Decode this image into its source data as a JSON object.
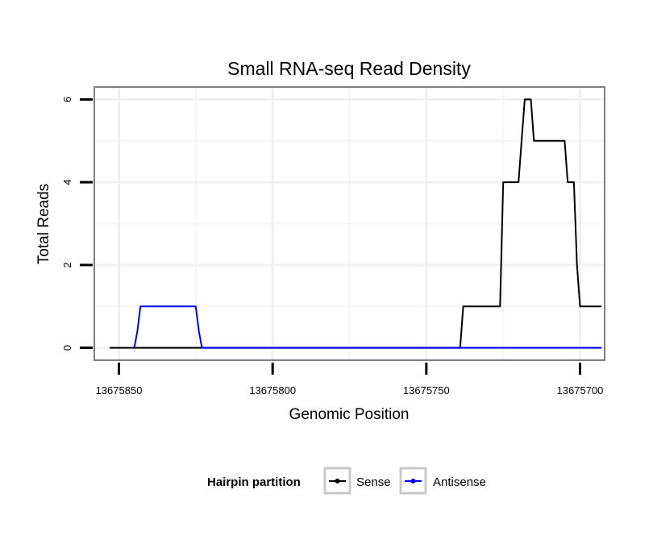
{
  "chart_data": {
    "type": "line",
    "title": "Small RNA-seq Read Density",
    "xlabel": "Genomic Position",
    "ylabel": "Total Reads",
    "x_reversed": true,
    "xlim": [
      13675858,
      13675692
    ],
    "ylim": [
      -0.3,
      6.3
    ],
    "x_ticks": [
      13675850,
      13675800,
      13675750,
      13675700
    ],
    "x_tick_labels": [
      "13675850",
      "13675800",
      "13675750",
      "13675700"
    ],
    "y_ticks": [
      0,
      2,
      4,
      6
    ],
    "y_tick_labels": [
      "0",
      "2",
      "4",
      "6"
    ],
    "grid": true,
    "legend": {
      "title": "Hairpin partition",
      "position": "bottom",
      "entries": [
        {
          "name": "Sense",
          "color": "#000000"
        },
        {
          "name": "Antisense",
          "color": "#0000ff"
        }
      ]
    },
    "series": [
      {
        "name": "Sense",
        "color": "#000000",
        "x": [
          13675853,
          13675739,
          13675738,
          13675726,
          13675725,
          13675720,
          13675719,
          13675718,
          13675717,
          13675716,
          13675715,
          13675714,
          13675713,
          13675705,
          13675704,
          13675702,
          13675701,
          13675700,
          13675699,
          13675693
        ],
        "y": [
          0,
          0,
          1,
          1,
          4,
          4,
          5,
          6,
          6,
          6,
          5,
          5,
          5,
          5,
          4,
          4,
          2,
          1,
          1,
          1
        ]
      },
      {
        "name": "Antisense",
        "color": "#0000ff",
        "x": [
          13675845,
          13675844,
          13675843,
          13675825,
          13675824,
          13675823,
          13675693
        ],
        "y": [
          0,
          0.4,
          1,
          1,
          0.4,
          0,
          0
        ]
      }
    ]
  }
}
